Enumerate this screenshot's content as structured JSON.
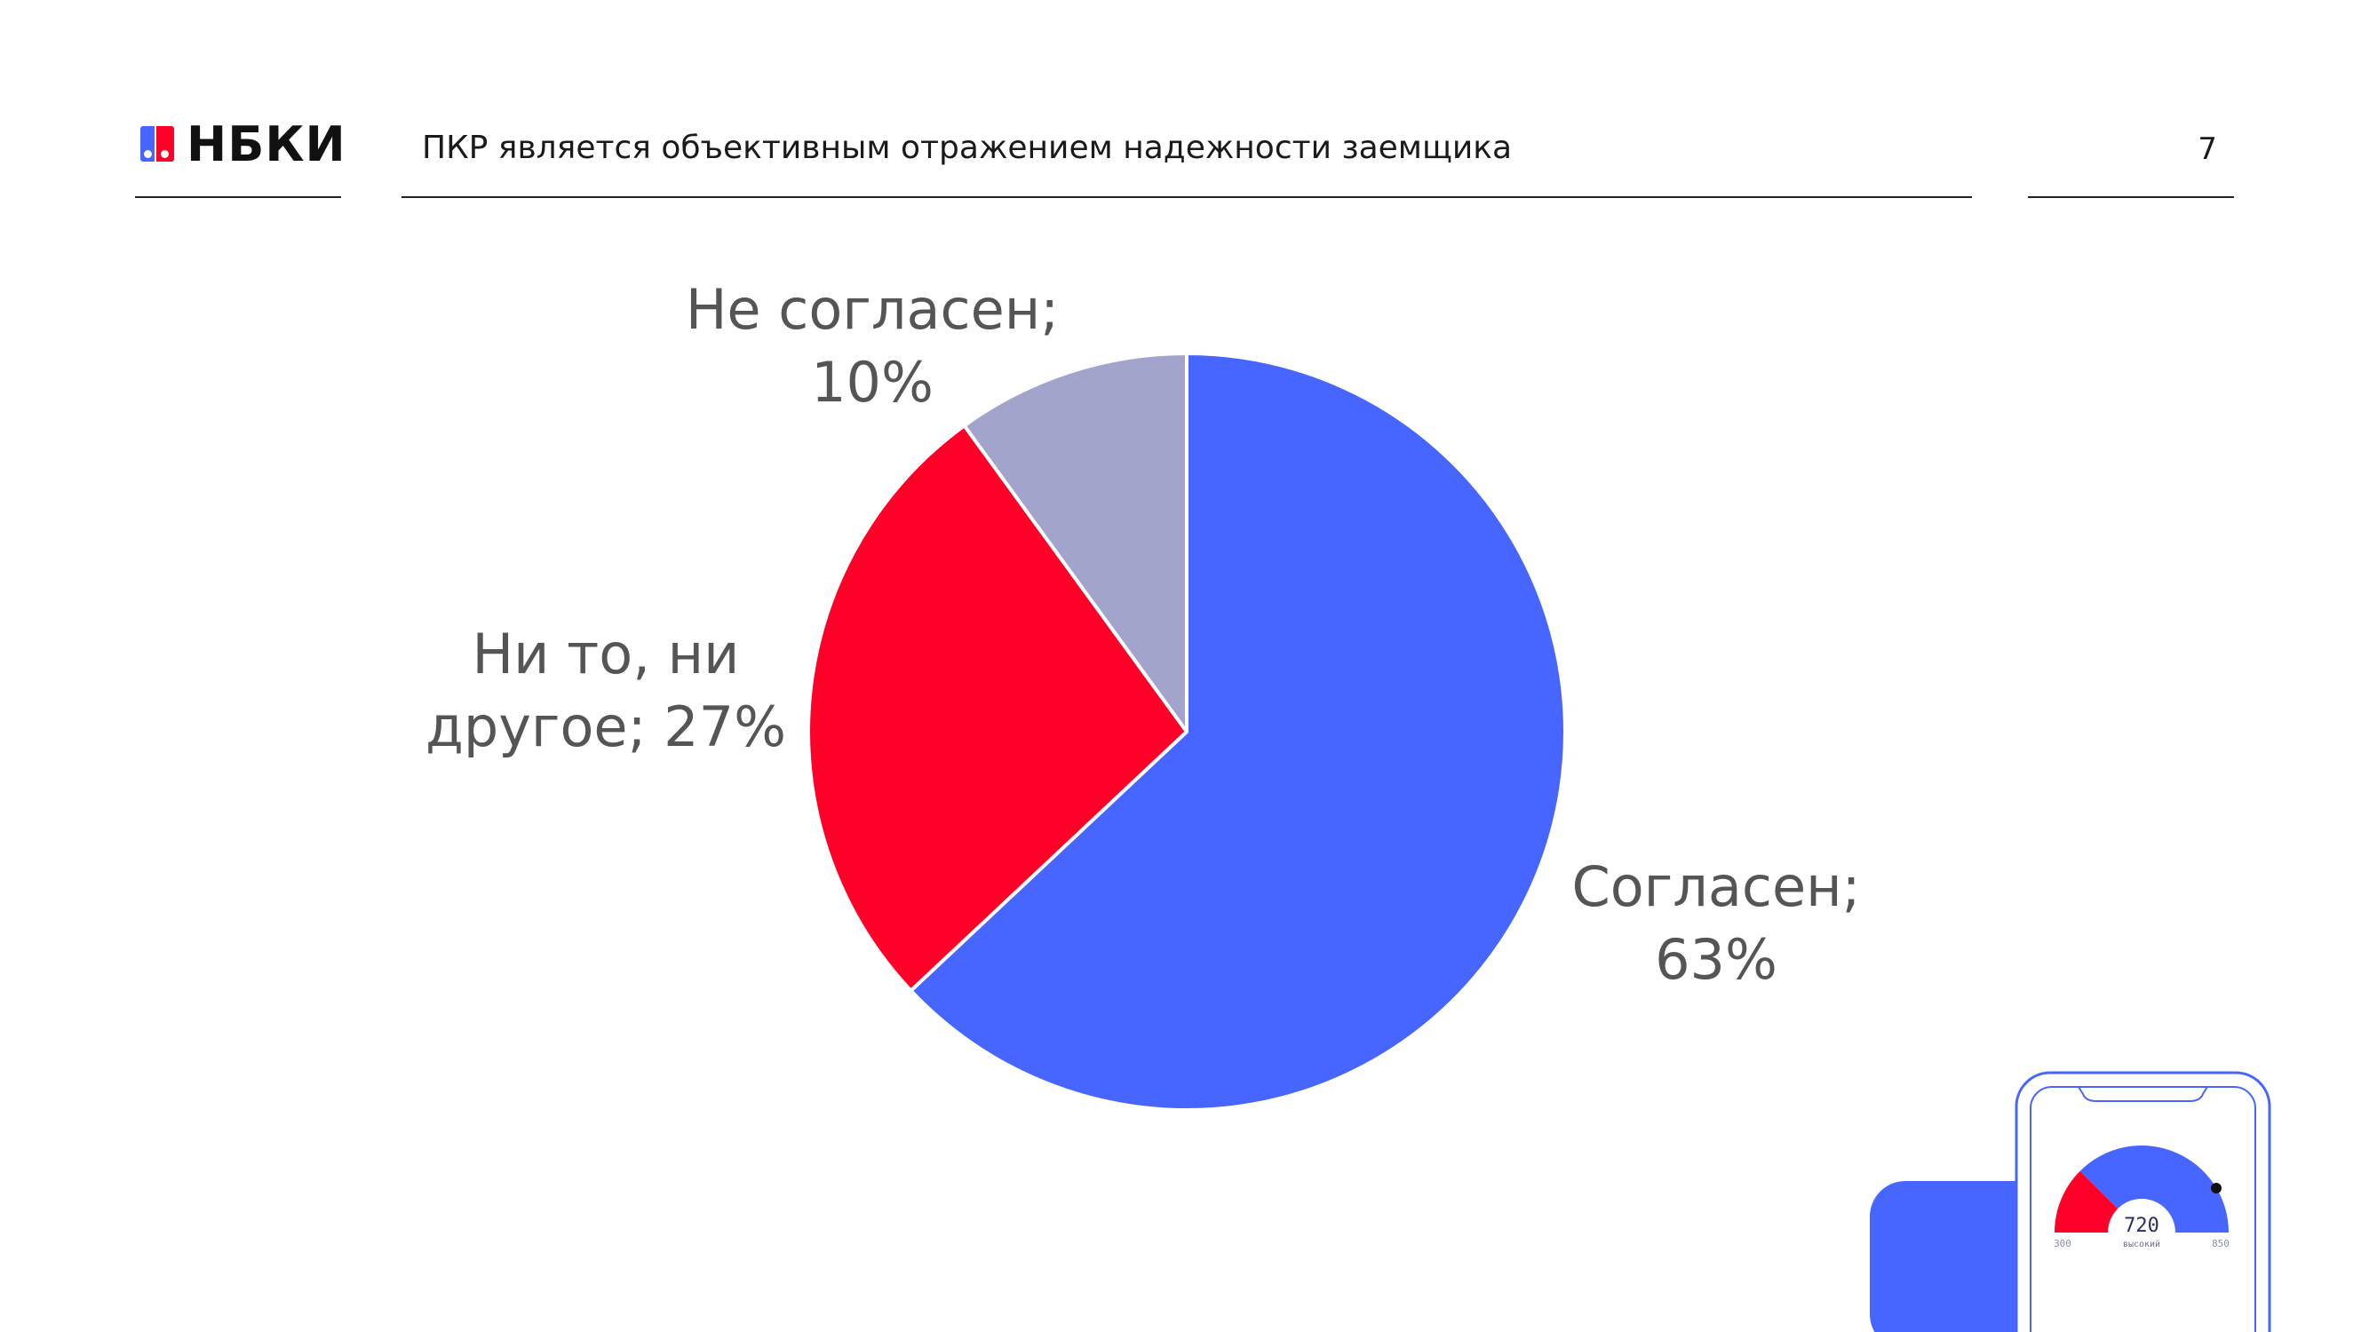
{
  "header": {
    "logo_text": "НБКИ",
    "title": "ПКР является объективным отражением надежности заемщика",
    "page_number": "7"
  },
  "colors": {
    "blue": "#4765ff",
    "red": "#ff0028",
    "gray": "#a2a4cc",
    "label": "#555555"
  },
  "chart_data": {
    "type": "pie",
    "title": "",
    "start_angle_deg": 0,
    "direction": "clockwise",
    "slices": [
      {
        "label": "Согласен",
        "value": 63,
        "display": [
          "Согласен;",
          "63%"
        ],
        "color": "#4765ff"
      },
      {
        "label": "Ни то, ни другое",
        "value": 27,
        "display": [
          "Ни то, ни",
          "другое; 27%"
        ],
        "color": "#ff0028"
      },
      {
        "label": "Не согласен",
        "value": 10,
        "display": [
          "Не согласен;",
          "10%"
        ],
        "color": "#a2a4cc"
      }
    ]
  },
  "phone_widget": {
    "score": "720",
    "score_caption": "высокий",
    "min_label": "300",
    "max_label": "850"
  }
}
